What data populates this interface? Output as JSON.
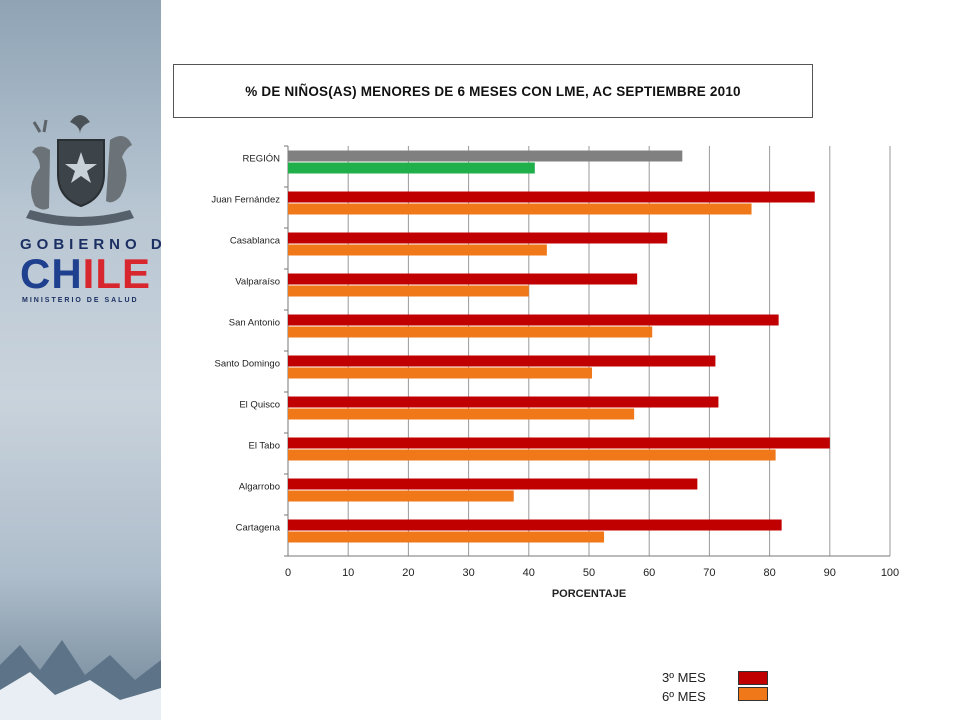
{
  "branding": {
    "gobierno": "GOBIERNO DE",
    "chile_part1": "CH",
    "chile_part2": "ILE",
    "ministerio": "MINISTERIO DE SALUD"
  },
  "colors": {
    "mes3": "#c00000",
    "mes6": "#f07818",
    "region_3": "#808080",
    "region_6": "#1fb04c"
  },
  "chart_data": {
    "type": "bar",
    "orientation": "horizontal",
    "title": "% DE  NIÑOS(AS) MENORES DE 6 MESES CON LME, AC SEPTIEMBRE 2010",
    "xlabel": "PORCENTAJE",
    "ylabel": "",
    "xlim": [
      0,
      100
    ],
    "x_ticks": [
      "0",
      "10",
      "20",
      "30",
      "40",
      "50",
      "60",
      "70",
      "80",
      "90",
      "100"
    ],
    "grid": "vertical",
    "categories": [
      "REGIÓN",
      "Juan Fernández",
      "Casablanca",
      "Valparaíso",
      "San Antonio",
      "Santo Domingo",
      "El Quisco",
      "El Tabo",
      "Algarrobo",
      "Cartagena"
    ],
    "series": [
      {
        "name": "3º MES",
        "values": [
          65.5,
          87.5,
          63,
          58,
          81.5,
          71,
          71.5,
          90,
          68,
          82
        ]
      },
      {
        "name": "6º MES",
        "values": [
          41,
          77,
          43,
          40,
          60.5,
          50.5,
          57.5,
          81,
          37.5,
          52.5
        ]
      }
    ],
    "legend_position": "bottom-right"
  }
}
